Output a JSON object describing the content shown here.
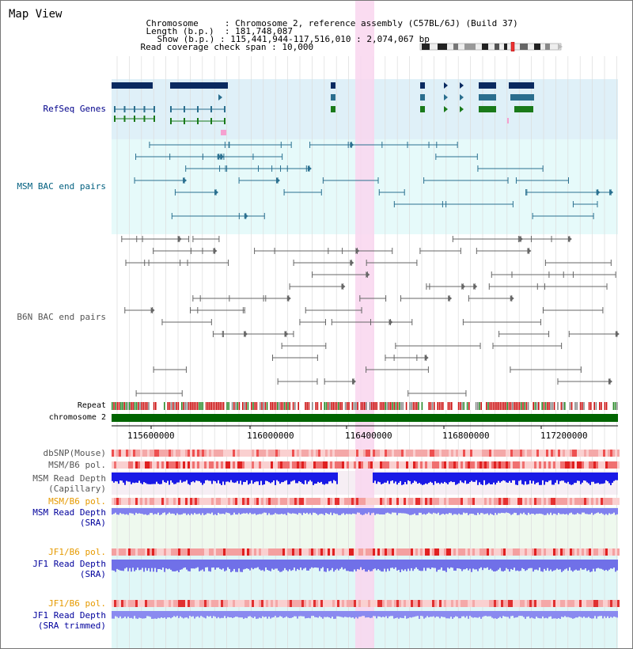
{
  "title": "Map View",
  "info": {
    "chromosome_label": "Chromosome",
    "chromosome_value": "Chromosome 2, reference assembly (C57BL/6J) (Build 37)",
    "length_label": "Length (b.p.)",
    "length_value": "181,748,087",
    "show_label": "Show (b.p.)",
    "show_value": "115,441,944-117,516,010 : 2,074,067 bp",
    "span_label": "Read coverage check span",
    "span_value": "10,000"
  },
  "tracks": {
    "refseq": "RefSeq Genes",
    "msm_bac": "MSM BAC end pairs",
    "b6n_bac": "B6N BAC end pairs",
    "repeat": "Repeat",
    "chromosome": "chromosome 2",
    "dbsnp": "dbSNP(Mouse)",
    "msm_b6_pol_1": "MSM/B6 pol.",
    "msm_read_depth_cap": "MSM Read Depth",
    "capillary": "(Capillary)",
    "msm_b6_pol_2": "MSM/B6 pol.",
    "msm_read_depth_sra": "MSM Read Depth",
    "sra1": "(SRA)",
    "jf1_b6_pol_1": "JF1/B6 pol.",
    "jf1_read_depth_sra": "JF1 Read Depth",
    "sra2": "(SRA)",
    "jf1_b6_pol_2": "JF1/B6 pol.",
    "jf1_read_depth_trim": "JF1 Read Depth",
    "sra_trimmed": "(SRA trimmed)"
  },
  "axis_ticks": [
    "115600000",
    "116000000",
    "116400000",
    "116800000",
    "117200000"
  ],
  "colors": {
    "refseq_bg": "#dff0f8",
    "msm_bg": "#e6fafa",
    "highlight": "#f9d6ef",
    "navy": "#0a2a60",
    "teal": "#2a6e8e",
    "green": "#1a7a1a",
    "chrom_green": "#006400",
    "depth_dark": "#1a1ae6",
    "depth_light": "#8080ee",
    "snp_pink": "#f08a8a"
  }
}
